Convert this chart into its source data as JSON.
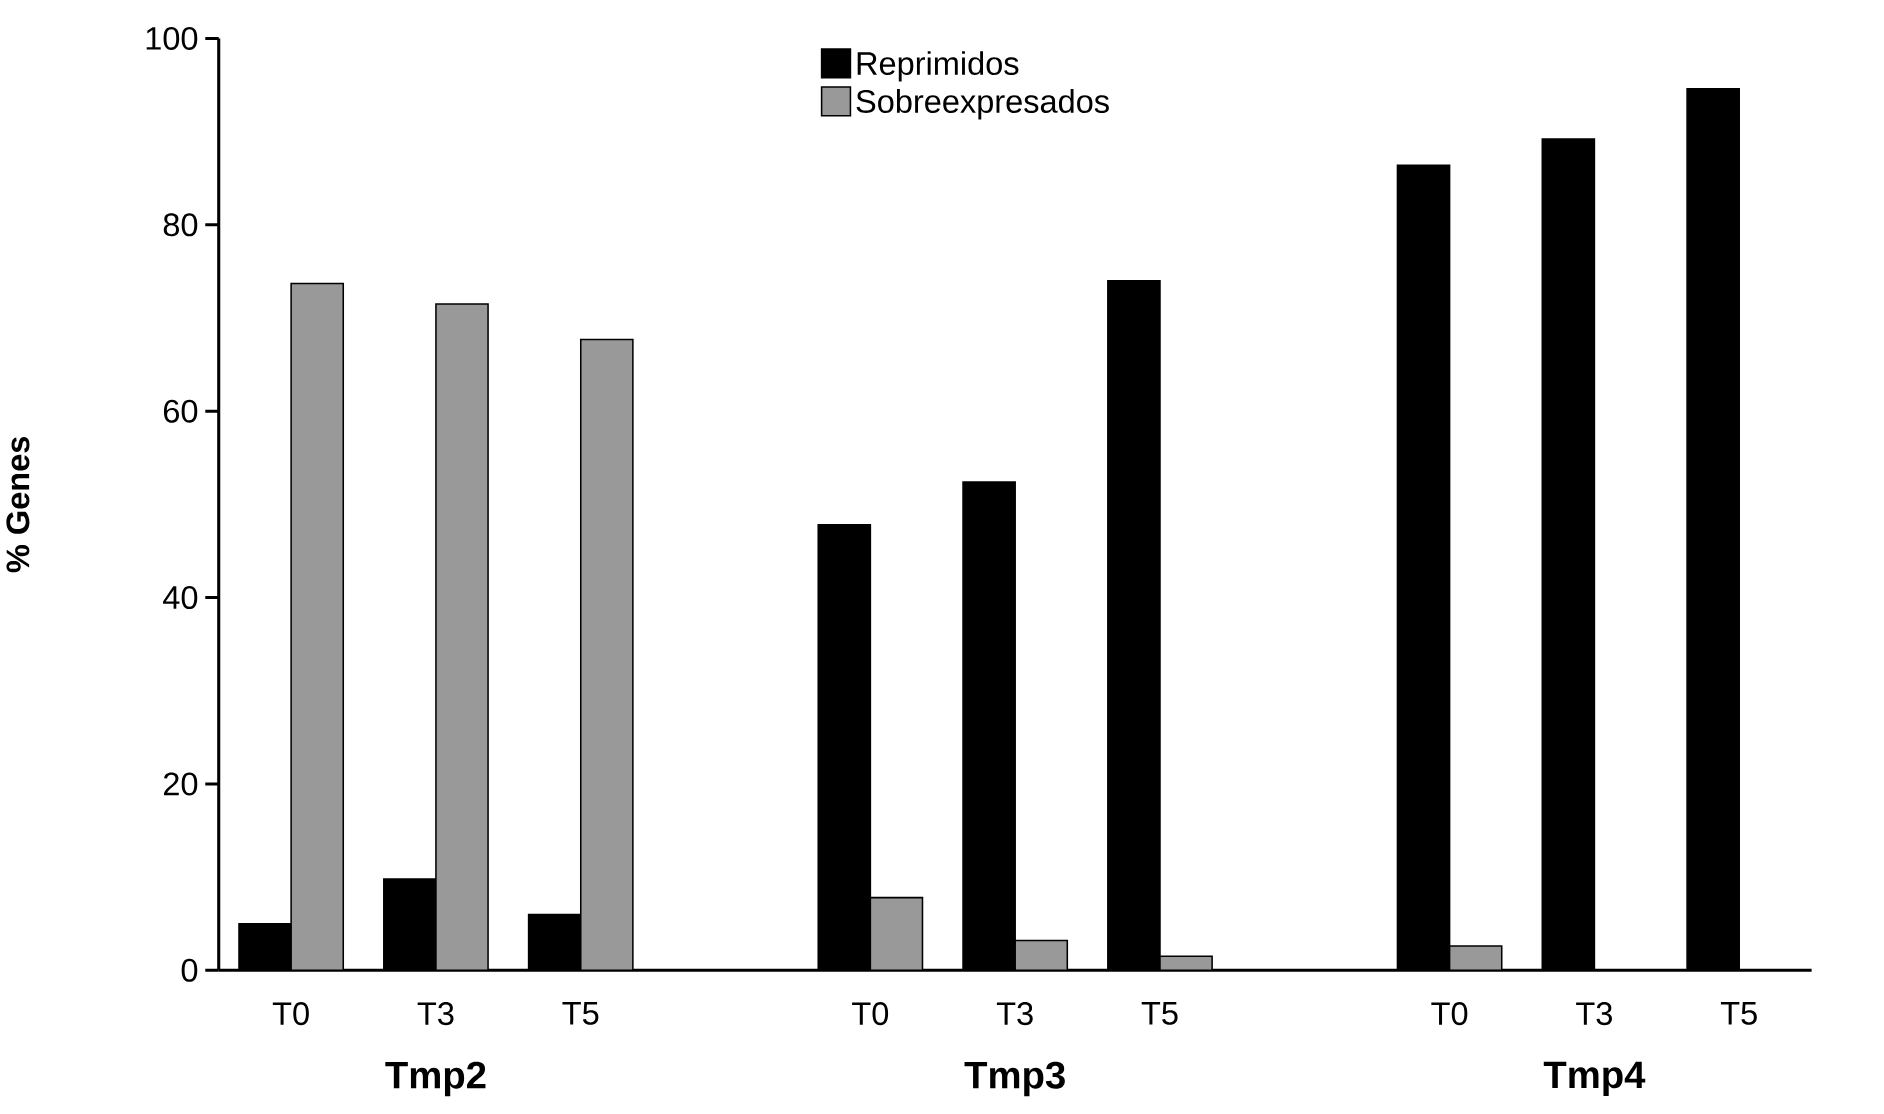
{
  "chart_data": {
    "type": "bar",
    "ylabel": "% Genes",
    "categories": [
      "T0",
      "T3",
      "T5",
      null,
      "T0",
      "T3",
      "T5",
      null,
      "T0",
      "T3",
      "T5"
    ],
    "series": [
      {
        "name": "Reprimidos",
        "color": "#000000",
        "values": [
          5.0,
          9.8,
          6.0,
          null,
          47.8,
          52.4,
          74.0,
          null,
          86.4,
          89.2,
          94.6
        ]
      },
      {
        "name": "Sobreexpresados",
        "color": "#999999",
        "values": [
          73.7,
          71.5,
          67.7,
          null,
          7.8,
          3.2,
          1.5,
          null,
          2.6,
          null,
          null
        ]
      }
    ],
    "ylim": [
      0,
      100
    ],
    "yticks": [
      0,
      20,
      40,
      60,
      80,
      100
    ],
    "annotations": [
      "Tmp2",
      "Tmp3",
      "Tmp4"
    ],
    "legend": "top",
    "grid": false
  }
}
